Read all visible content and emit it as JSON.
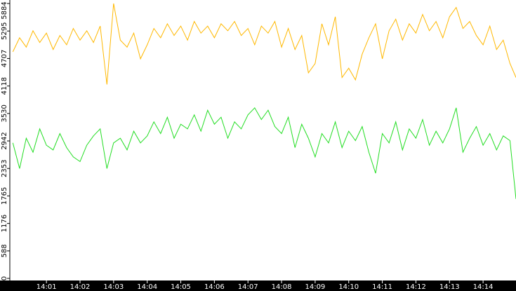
{
  "chart_data": {
    "type": "line",
    "x": [
      0,
      0.2,
      0.4,
      0.6,
      0.8,
      1,
      1.2,
      1.4,
      1.6,
      1.8,
      2,
      2.2,
      2.4,
      2.6,
      2.8,
      3,
      3.2,
      3.4,
      3.6,
      3.8,
      4,
      4.2,
      4.4,
      4.6,
      4.8,
      5,
      5.2,
      5.4,
      5.6,
      5.8,
      6,
      6.2,
      6.4,
      6.6,
      6.8,
      7,
      7.2,
      7.4,
      7.6,
      7.8,
      8,
      8.2,
      8.4,
      8.6,
      8.8,
      9,
      9.2,
      9.4,
      9.6,
      9.8,
      10,
      10.2,
      10.4,
      10.6,
      10.8,
      11,
      11.2,
      11.4,
      11.6,
      11.8,
      12,
      12.2,
      12.4,
      12.6,
      12.8,
      13,
      13.2,
      13.4,
      13.6,
      13.8,
      14,
      14.2,
      14.4,
      14.6,
      14.8,
      14.98
    ],
    "series": [
      {
        "color": "#ffb800",
        "values": [
          4850,
          5150,
          4950,
          5300,
          5050,
          5250,
          4900,
          5200,
          5000,
          5350,
          5100,
          5300,
          5050,
          5400,
          4150,
          5884,
          5100,
          4950,
          5250,
          4700,
          5000,
          5350,
          5150,
          5450,
          5200,
          5400,
          5100,
          5500,
          5250,
          5400,
          5150,
          5450,
          5300,
          5500,
          5200,
          5350,
          5000,
          5400,
          5250,
          5500,
          4950,
          5350,
          4900,
          5200,
          4400,
          4600,
          5450,
          5000,
          5600,
          4300,
          4500,
          4250,
          4800,
          5150,
          5450,
          4700,
          5300,
          5550,
          5100,
          5450,
          5250,
          5650,
          5300,
          5500,
          5150,
          5600,
          5800,
          5350,
          5500,
          5200,
          5000,
          5400,
          4900,
          5100,
          4600,
          4300
        ]
      },
      {
        "color": "#22dd22",
        "values": [
          2900,
          2350,
          3000,
          2700,
          3200,
          2850,
          2750,
          3100,
          2800,
          2600,
          2500,
          2850,
          3050,
          3200,
          2350,
          2900,
          3000,
          2750,
          3150,
          2900,
          3050,
          3350,
          3100,
          3450,
          3000,
          3300,
          3200,
          3500,
          3150,
          3600,
          3300,
          3450,
          3000,
          3350,
          3200,
          3500,
          3650,
          3400,
          3600,
          3250,
          3100,
          3450,
          2800,
          3300,
          3000,
          2600,
          3100,
          2900,
          3350,
          2800,
          3150,
          2950,
          3250,
          2700,
          2250,
          3100,
          2900,
          3350,
          2750,
          3200,
          3000,
          3400,
          2850,
          3150,
          2900,
          3200,
          3650,
          2700,
          3000,
          3250,
          2850,
          3100,
          2750,
          3050,
          2950,
          1700
        ]
      }
    ],
    "xlim": [
      -0.09,
      14.98
    ],
    "xticks": [
      {
        "value": 1,
        "label": "14:01"
      },
      {
        "value": 2,
        "label": "14:02"
      },
      {
        "value": 3,
        "label": "14:03"
      },
      {
        "value": 4,
        "label": "14:04"
      },
      {
        "value": 5,
        "label": "14:05"
      },
      {
        "value": 6,
        "label": "14:06"
      },
      {
        "value": 7,
        "label": "14:07"
      },
      {
        "value": 8,
        "label": "14:08"
      },
      {
        "value": 9,
        "label": "14:09"
      },
      {
        "value": 10,
        "label": "14:10"
      },
      {
        "value": 11,
        "label": "14:11"
      },
      {
        "value": 12,
        "label": "14:12"
      },
      {
        "value": 13,
        "label": "14:13"
      },
      {
        "value": 14,
        "label": "14:14"
      }
    ],
    "ylim": [
      0,
      5884
    ],
    "yticks": [
      0,
      588,
      1176,
      1765,
      2353,
      2942,
      3530,
      4118,
      4707,
      5295,
      5884
    ]
  }
}
